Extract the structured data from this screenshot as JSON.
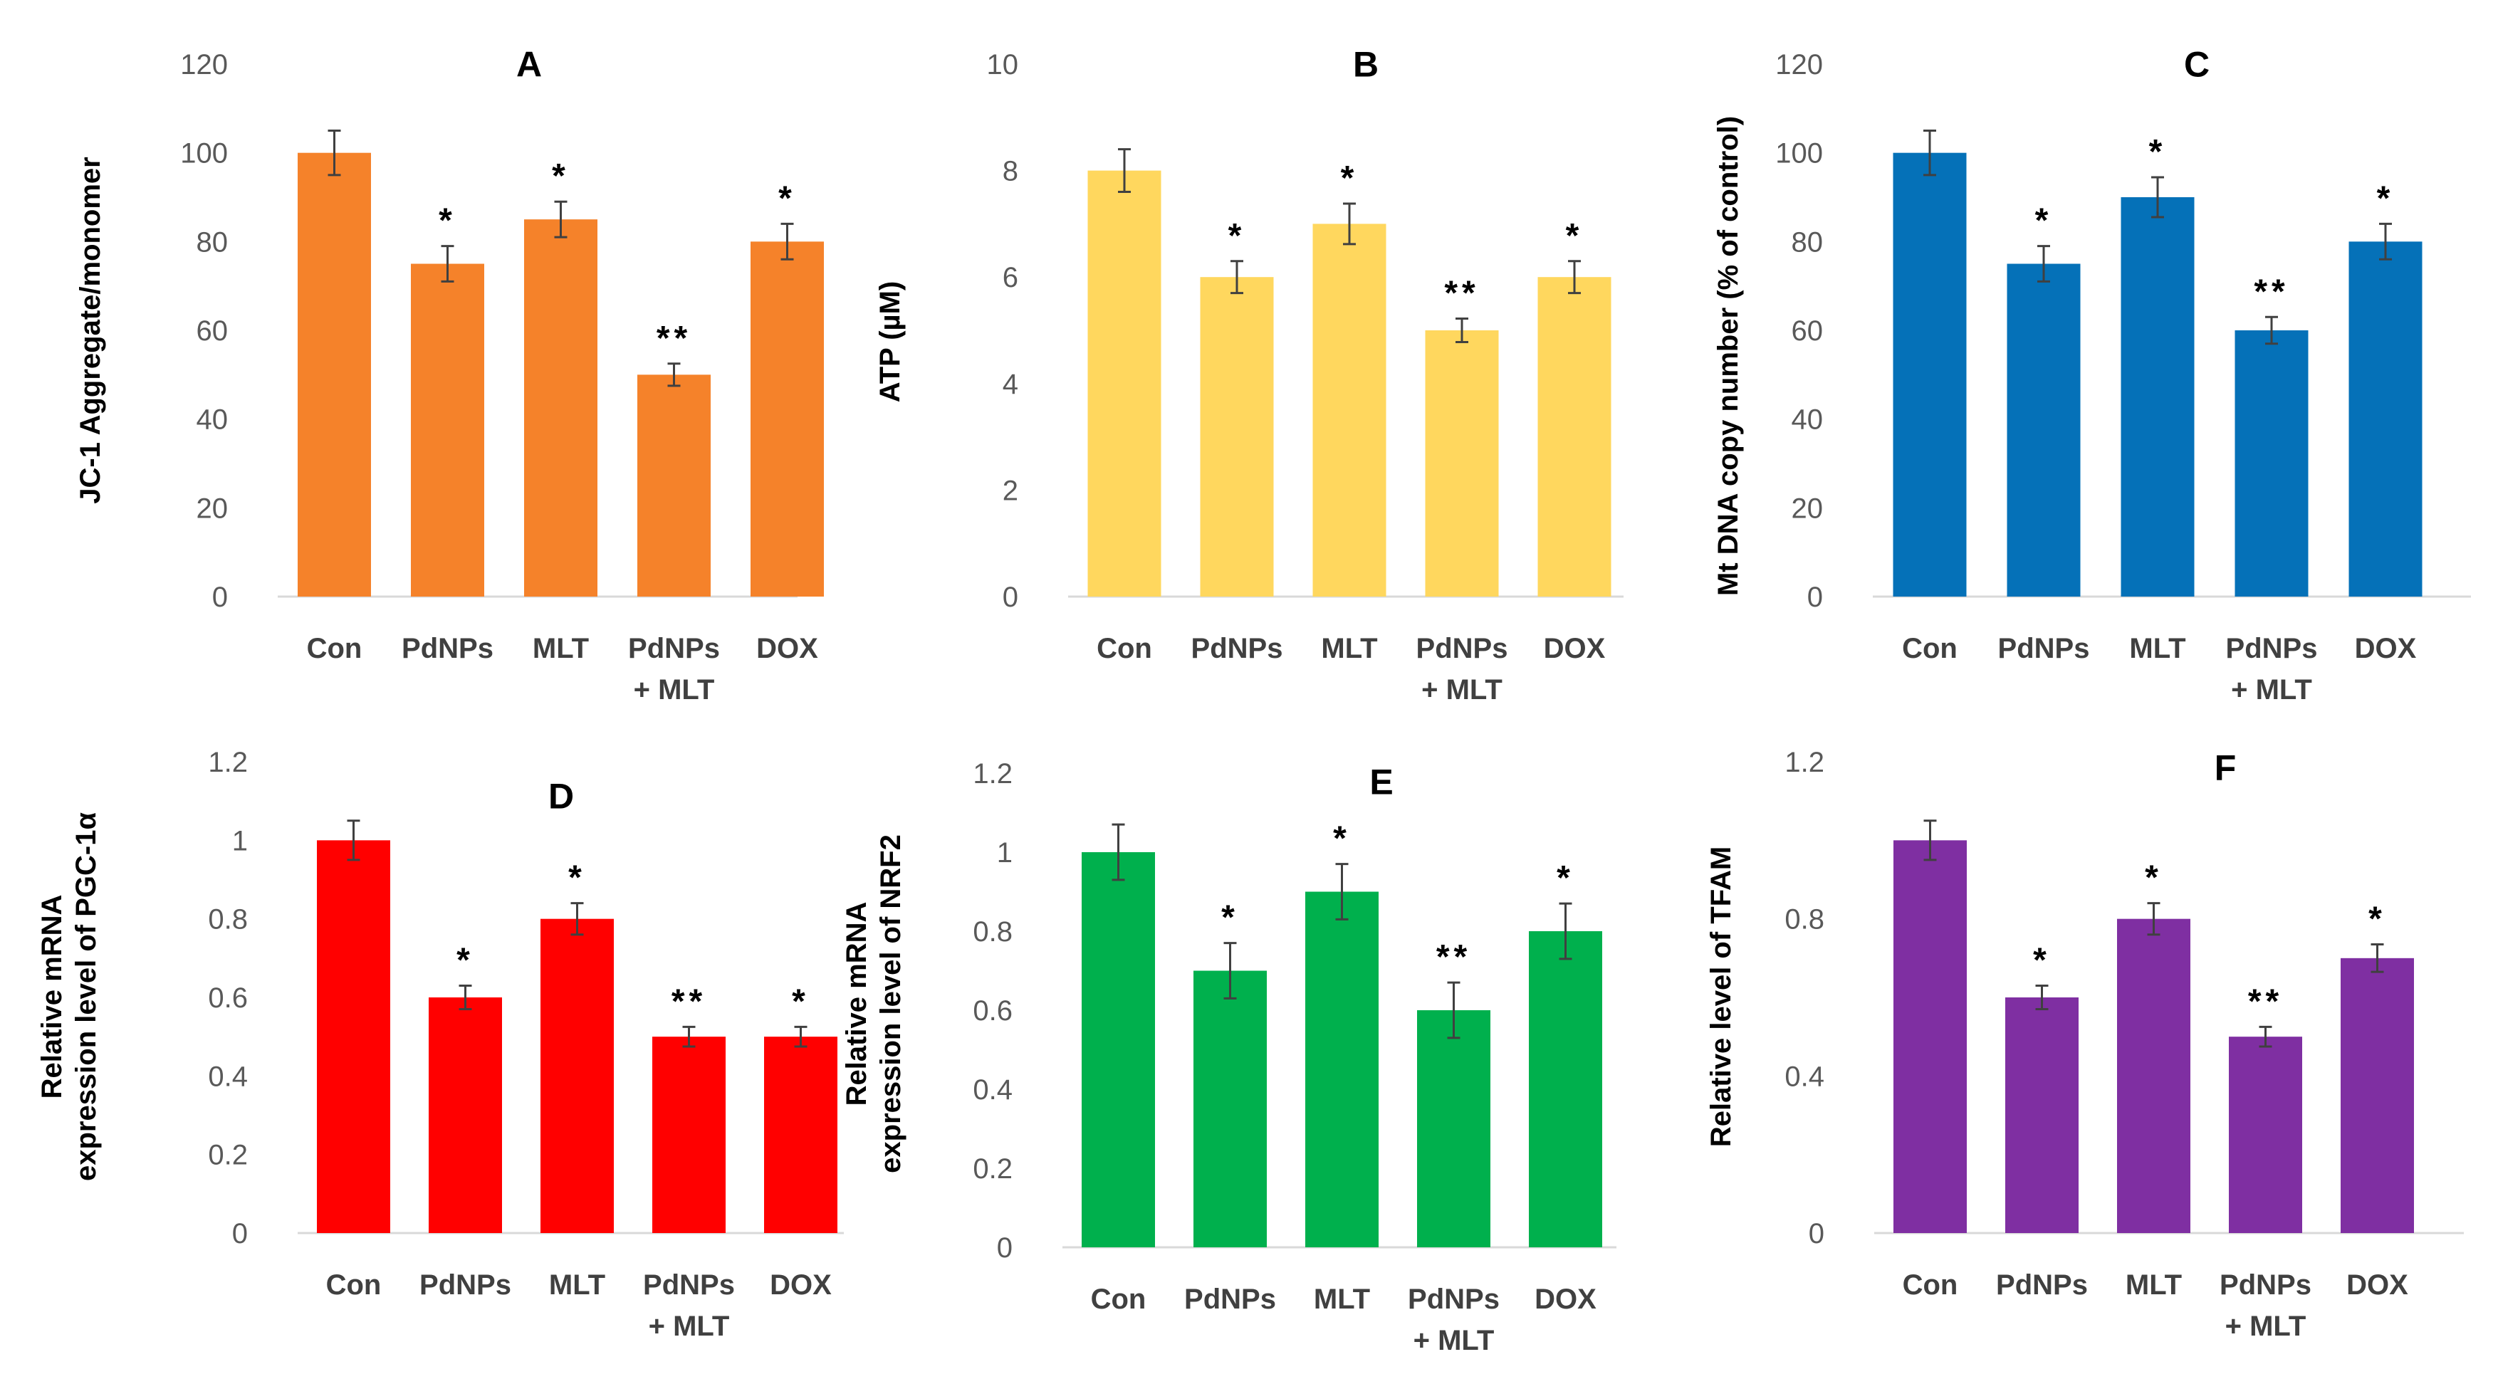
{
  "chart_data": [
    {
      "panel": "A",
      "type": "bar",
      "title": "A",
      "ylabel": "JC-1 Aggregate/monomer",
      "categories": [
        [
          "Con"
        ],
        [
          "PdNPs"
        ],
        [
          "MLT"
        ],
        [
          "PdNPs",
          "+ MLT"
        ],
        [
          "DOX"
        ]
      ],
      "values": [
        100,
        75,
        85,
        50,
        80
      ],
      "errors": [
        5,
        4,
        4,
        2.5,
        4
      ],
      "significance": [
        "",
        "*",
        "*",
        "**",
        "*"
      ],
      "ylim": [
        0,
        120
      ],
      "yticks": [
        0,
        20,
        40,
        60,
        80,
        100,
        120
      ],
      "tick_labels": [
        "0",
        "20",
        "40",
        "60",
        "80",
        "100",
        "120"
      ],
      "color": "#F5822A",
      "grid": false
    },
    {
      "panel": "B",
      "type": "bar",
      "title": "B",
      "ylabel": "ATP (µM)",
      "categories": [
        [
          "Con"
        ],
        [
          "PdNPs"
        ],
        [
          "MLT"
        ],
        [
          "PdNPs",
          "+ MLT"
        ],
        [
          "DOX"
        ]
      ],
      "values": [
        8,
        6,
        7,
        5,
        6
      ],
      "errors": [
        0.4,
        0.3,
        0.38,
        0.22,
        0.3
      ],
      "significance": [
        "",
        "*",
        "*",
        "**",
        "*"
      ],
      "ylim": [
        0,
        10
      ],
      "yticks": [
        0,
        2,
        4,
        6,
        8,
        10
      ],
      "tick_labels": [
        "0",
        "2",
        "4",
        "6",
        "8",
        "10"
      ],
      "color": "#FFD75E",
      "grid": false
    },
    {
      "panel": "C",
      "type": "bar",
      "title": "C",
      "ylabel": "Mt DNA copy number (% of control)",
      "categories": [
        [
          "Con"
        ],
        [
          "PdNPs"
        ],
        [
          "MLT"
        ],
        [
          "PdNPs",
          "+ MLT"
        ],
        [
          "DOX"
        ]
      ],
      "values": [
        100,
        75,
        90,
        60,
        80
      ],
      "errors": [
        5,
        4,
        4.5,
        3,
        4
      ],
      "significance": [
        "",
        "*",
        "*",
        "**",
        "*"
      ],
      "ylim": [
        0,
        120
      ],
      "yticks": [
        0,
        20,
        40,
        60,
        80,
        100,
        120
      ],
      "tick_labels": [
        "0",
        "20",
        "40",
        "60",
        "80",
        "100",
        "120"
      ],
      "color": "#0571B8",
      "grid": false
    },
    {
      "panel": "D",
      "type": "bar",
      "title": "D",
      "ylabel": [
        "Relative mRNA",
        "expression level of PGC-1α"
      ],
      "categories": [
        [
          "Con"
        ],
        [
          "PdNPs"
        ],
        [
          "MLT"
        ],
        [
          "PdNPs",
          "+ MLT"
        ],
        [
          "DOX"
        ]
      ],
      "values": [
        1.0,
        0.6,
        0.8,
        0.5,
        0.5
      ],
      "errors": [
        0.05,
        0.03,
        0.04,
        0.025,
        0.025
      ],
      "significance": [
        "",
        "*",
        "*",
        "**",
        "*"
      ],
      "ylim": [
        0,
        1.2
      ],
      "yticks": [
        0,
        0.2,
        0.4,
        0.6,
        0.8,
        1.0,
        1.2
      ],
      "tick_labels": [
        "0",
        "0.2",
        "0.4",
        "0.6",
        "0.8",
        "1",
        "1.2"
      ],
      "color": "#FF0000",
      "grid": false
    },
    {
      "panel": "E",
      "type": "bar",
      "title": "E",
      "ylabel": [
        "Relative mRNA",
        "expression level of NRF2"
      ],
      "categories": [
        [
          "Con"
        ],
        [
          "PdNPs"
        ],
        [
          "MLT"
        ],
        [
          "PdNPs",
          "+ MLT"
        ],
        [
          "DOX"
        ]
      ],
      "values": [
        1.0,
        0.7,
        0.9,
        0.6,
        0.8
      ],
      "errors": [
        0.07,
        0.07,
        0.07,
        0.07,
        0.07
      ],
      "significance": [
        "",
        "*",
        "*",
        "**",
        "*"
      ],
      "ylim": [
        0,
        1.2
      ],
      "yticks": [
        0,
        0.2,
        0.4,
        0.6,
        0.8,
        1.0,
        1.2
      ],
      "tick_labels": [
        "0",
        "0.2",
        "0.4",
        "0.6",
        "0.8",
        "1",
        "1.2"
      ],
      "color": "#00B04D",
      "grid": false
    },
    {
      "panel": "F",
      "type": "bar",
      "title": "F",
      "ylabel": "Relative level of TFAM",
      "categories": [
        [
          "Con"
        ],
        [
          "PdNPs"
        ],
        [
          "MLT"
        ],
        [
          "PdNPs",
          "+ MLT"
        ],
        [
          "DOX"
        ]
      ],
      "values": [
        1.0,
        0.6,
        0.8,
        0.5,
        0.7
      ],
      "errors": [
        0.05,
        0.03,
        0.04,
        0.025,
        0.035
      ],
      "significance": [
        "",
        "*",
        "*",
        "**",
        "*"
      ],
      "ylim": [
        0,
        1.2
      ],
      "yticks": [
        0,
        0.4,
        0.8,
        1.2
      ],
      "tick_labels": [
        "0",
        "0.4",
        "0.8",
        "1.2"
      ],
      "color": "#7F2FA2",
      "grid": false
    }
  ]
}
